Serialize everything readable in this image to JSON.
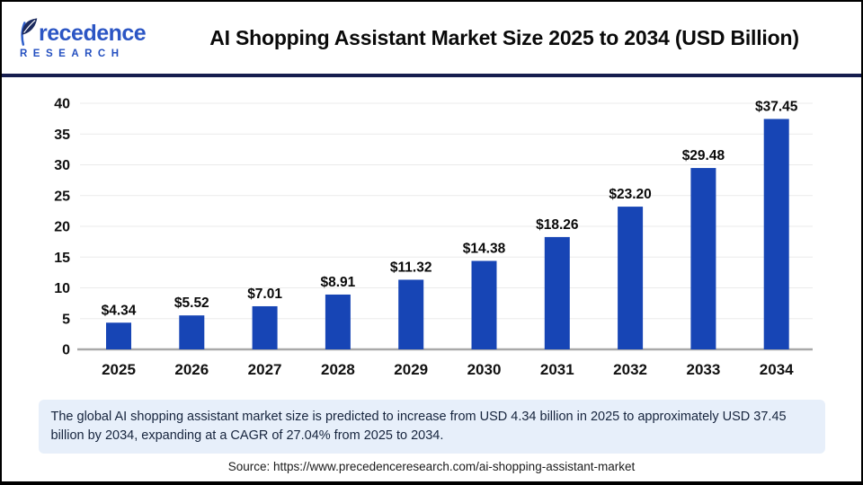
{
  "header": {
    "brand": {
      "word_rest": "recedence",
      "subline": "RESEARCH"
    },
    "title": "AI Shopping Assistant Market Size 2025 to 2034 (USD Billion)"
  },
  "chart_data": {
    "type": "bar",
    "title": "AI Shopping Assistant Market Size 2025 to 2034 (USD Billion)",
    "categories": [
      "2025",
      "2026",
      "2027",
      "2028",
      "2029",
      "2030",
      "2031",
      "2032",
      "2033",
      "2034"
    ],
    "values": [
      4.34,
      5.52,
      7.01,
      8.91,
      11.32,
      14.38,
      18.26,
      23.2,
      29.48,
      37.45
    ],
    "bar_labels": [
      "$4.34",
      "$5.52",
      "$7.01",
      "$8.91",
      "$11.32",
      "$14.38",
      "$18.26",
      "$23.20",
      "$29.48",
      "$37.45"
    ],
    "xlabel": "",
    "ylabel": "",
    "unit": "USD Billion",
    "ylim": [
      0,
      40
    ],
    "yticks": [
      0,
      5,
      10,
      15,
      20,
      25,
      30,
      35,
      40
    ],
    "grid": true,
    "legend": "none",
    "bar_color": "#1745B5"
  },
  "note": {
    "text": "The global AI shopping assistant market size is predicted to increase from USD 4.34 billion in 2025 to approximately USD 37.45 billion by 2034, expanding at a CAGR of 27.04% from 2025 to 2034."
  },
  "source": {
    "text": "Source: https://www.precedenceresearch.com/ai-shopping-assistant-market"
  },
  "colors": {
    "bar": "#1745B5",
    "divider": "#161D4E",
    "note_background": "#E7EFFA",
    "gridline": "#EBEBEB",
    "baseline": "#A9A9A9",
    "brand_navy": "#1B2A5E",
    "brand_blue": "#2B55C4"
  }
}
